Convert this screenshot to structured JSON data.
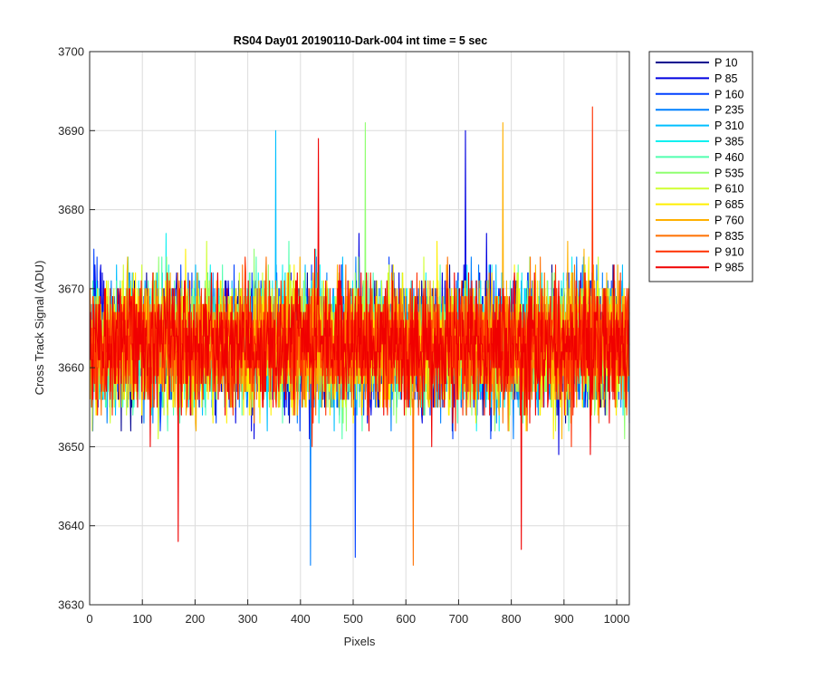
{
  "chart_data": {
    "type": "line",
    "title": "RS04 Day01 20190110-Dark-004 int time = 5 sec",
    "xlabel": "Pixels",
    "ylabel": "Cross Track Signal (ADU)",
    "xlim": [
      0,
      1024
    ],
    "ylim": [
      3630,
      3700
    ],
    "x_ticks": [
      0,
      100,
      200,
      300,
      400,
      500,
      600,
      700,
      800,
      900,
      1000
    ],
    "x_tick_labels": [
      "0",
      "100",
      "200",
      "300",
      "400",
      "500",
      "600",
      "700",
      "800",
      "900",
      "1000"
    ],
    "y_ticks": [
      3630,
      3640,
      3650,
      3660,
      3670,
      3680,
      3690,
      3700
    ],
    "y_tick_labels": [
      "3630",
      "3640",
      "3650",
      "3660",
      "3670",
      "3680",
      "3690",
      "3700"
    ],
    "grid": true,
    "legend_position": "outside-top-right",
    "x_count": 1024,
    "series": [
      {
        "name": "P 10",
        "color": "#00008f",
        "mean": 3663,
        "spread": 7
      },
      {
        "name": "P 85",
        "color": "#0000e0",
        "mean": 3663,
        "spread": 7
      },
      {
        "name": "P 160",
        "color": "#0040ff",
        "mean": 3663,
        "spread": 7
      },
      {
        "name": "P 235",
        "color": "#0080ff",
        "mean": 3663,
        "spread": 7
      },
      {
        "name": "P 310",
        "color": "#00bfff",
        "mean": 3663,
        "spread": 7
      },
      {
        "name": "P 385",
        "color": "#10f0f0",
        "mean": 3663,
        "spread": 7
      },
      {
        "name": "P 460",
        "color": "#50ffaf",
        "mean": 3663,
        "spread": 7
      },
      {
        "name": "P 535",
        "color": "#8fff70",
        "mean": 3663,
        "spread": 7
      },
      {
        "name": "P 610",
        "color": "#cfff30",
        "mean": 3663,
        "spread": 7
      },
      {
        "name": "P 685",
        "color": "#ffef00",
        "mean": 3663,
        "spread": 7
      },
      {
        "name": "P 760",
        "color": "#ffb000",
        "mean": 3663,
        "spread": 7
      },
      {
        "name": "P 835",
        "color": "#ff7000",
        "mean": 3663,
        "spread": 7
      },
      {
        "name": "P 910",
        "color": "#ff3000",
        "mean": 3663,
        "spread": 7
      },
      {
        "name": "P 985",
        "color": "#f00000",
        "mean": 3663,
        "spread": 7
      }
    ],
    "extremes": [
      {
        "x": 953,
        "y": 3693,
        "series": "P 910"
      },
      {
        "x": 783,
        "y": 3691,
        "series": "P 760"
      },
      {
        "x": 522,
        "y": 3691,
        "series": "P 535"
      },
      {
        "x": 352,
        "y": 3690,
        "series": "P 310"
      },
      {
        "x": 712,
        "y": 3690,
        "series": "P 85"
      },
      {
        "x": 433,
        "y": 3689,
        "series": "P 985"
      },
      {
        "x": 418,
        "y": 3635,
        "series": "P 235"
      },
      {
        "x": 613,
        "y": 3635,
        "series": "P 835"
      },
      {
        "x": 503,
        "y": 3636,
        "series": "P 160"
      },
      {
        "x": 818,
        "y": 3637,
        "series": "P 985"
      },
      {
        "x": 167,
        "y": 3638,
        "series": "P 985"
      }
    ]
  }
}
